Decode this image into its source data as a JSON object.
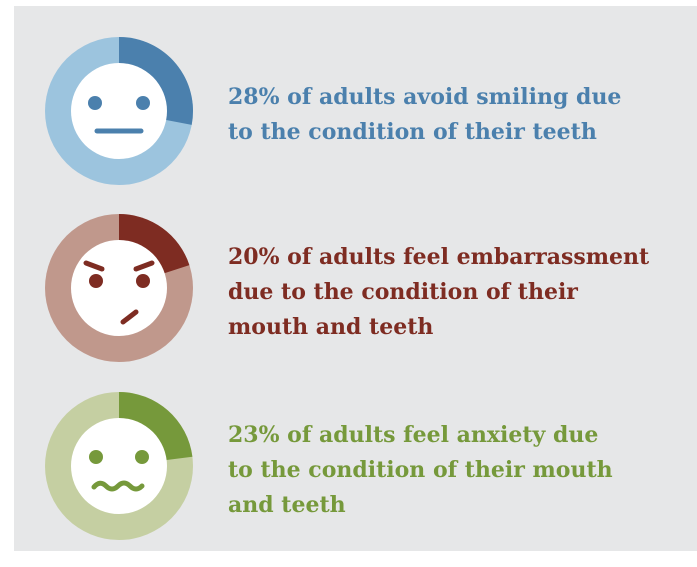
{
  "chart_data": [
    {
      "type": "pie",
      "values": [
        28,
        72
      ],
      "caption": "28% of adults avoid smiling due\nto the condition of their teeth",
      "face": "neutral",
      "colors": {
        "highlight": "#4b80ad",
        "ring": "#9cc4de",
        "face": "#ffffff",
        "features": "#4b80ad",
        "text": "#4b80ad"
      }
    },
    {
      "type": "pie",
      "values": [
        20,
        80
      ],
      "caption": "20% of adults feel embarrassment\ndue to the condition of their\nmouth and teeth",
      "face": "embarrassed",
      "colors": {
        "highlight": "#7e2c22",
        "ring": "#c0988c",
        "face": "#ffffff",
        "features": "#7e2c22",
        "text": "#7e2c22"
      }
    },
    {
      "type": "pie",
      "values": [
        23,
        77
      ],
      "caption": "23% of adults feel anxiety due\nto the condition of their mouth\nand teeth",
      "face": "anxious",
      "colors": {
        "highlight": "#76993b",
        "ring": "#c5cfa2",
        "face": "#ffffff",
        "features": "#76993b",
        "text": "#76993b"
      }
    }
  ]
}
